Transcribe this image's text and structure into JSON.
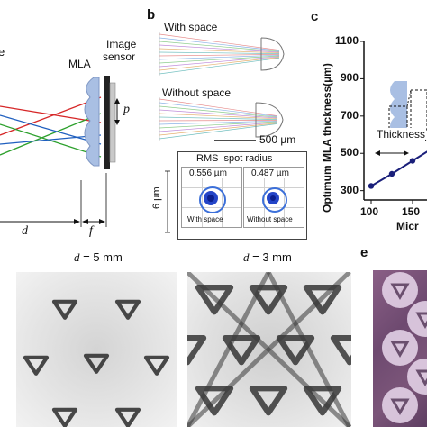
{
  "panel_a": {
    "partial_label": "e",
    "mla_label": "MLA",
    "sensor_label_line1": "Image",
    "sensor_label_line2": "sensor",
    "p_label": "p",
    "d_label": "d",
    "f_label": "f"
  },
  "panel_b": {
    "letter": "b",
    "with_space_label": "With space",
    "without_space_label": "Without space",
    "scale_bar_label": "500 µm",
    "rms_title": "RMS  spot radius",
    "rms_with_value": "0.556 µm",
    "rms_without_value": "0.487 µm",
    "rms_with_caption": "With space",
    "rms_without_caption": "Without space",
    "y_scale_label": "6 µm"
  },
  "panel_c": {
    "letter": "c",
    "inset_label": "Thickness",
    "chart_data": {
      "type": "line",
      "ylabel": "Optimum MLA thickness(µm)",
      "xlabel": "Micr",
      "x_ticks": [
        "100",
        "150"
      ],
      "y_ticks": [
        "300",
        "500",
        "700",
        "900",
        "1100"
      ],
      "ylim": [
        250,
        1100
      ],
      "x": [
        100,
        125,
        150,
        175
      ],
      "series": [
        {
          "values": [
            325,
            390,
            460,
            530
          ]
        }
      ]
    }
  },
  "panel_d": {
    "left_title": "d = 5 mm",
    "right_title": "d = 3 mm"
  },
  "panel_e": {
    "letter": "e"
  },
  "colors": {
    "ray_red": "#d62728",
    "ray_green": "#2ca02c",
    "ray_blue": "#1f5fbf",
    "lens_fill": "#a9bfe3",
    "line_series": "#1a1f7a"
  }
}
